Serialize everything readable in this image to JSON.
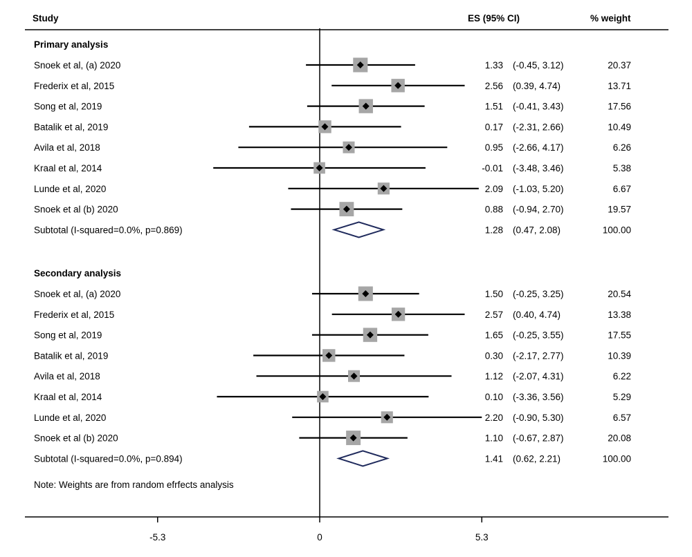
{
  "headers": {
    "study": "Study",
    "es": "ES (95% CI)",
    "weight": "% weight"
  },
  "note": "Note: Weights are from random efrfects analysis",
  "chart_data": {
    "type": "forest",
    "x_axis": {
      "ticks": [
        -5.3,
        0,
        5.3
      ],
      "tick_labels": [
        "-5.3",
        "0",
        "5.3"
      ],
      "null_line": 0
    },
    "sections": [
      {
        "title": "Primary analysis",
        "studies": [
          {
            "label": "Snoek et al, (a) 2020",
            "es": 1.33,
            "lo": -0.45,
            "hi": 3.12,
            "es_text": "1.33",
            "ci_text": "(-0.45, 3.12)",
            "weight": "20.37"
          },
          {
            "label": "Frederix et al, 2015",
            "es": 2.56,
            "lo": 0.39,
            "hi": 4.74,
            "es_text": "2.56",
            "ci_text": "(0.39, 4.74)",
            "weight": "13.71"
          },
          {
            "label": "Song et al, 2019",
            "es": 1.51,
            "lo": -0.41,
            "hi": 3.43,
            "es_text": "1.51",
            "ci_text": "(-0.41, 3.43)",
            "weight": "17.56"
          },
          {
            "label": "Batalik et al, 2019",
            "es": 0.17,
            "lo": -2.31,
            "hi": 2.66,
            "es_text": "0.17",
            "ci_text": "(-2.31, 2.66)",
            "weight": "10.49"
          },
          {
            "label": "Avila et al, 2018",
            "es": 0.95,
            "lo": -2.66,
            "hi": 4.17,
            "es_text": "0.95",
            "ci_text": "(-2.66, 4.17)",
            "weight": "6.26"
          },
          {
            "label": "Kraal et al, 2014",
            "es": -0.01,
            "lo": -3.48,
            "hi": 3.46,
            "es_text": "-0.01",
            "ci_text": "(-3.48, 3.46)",
            "weight": "5.38"
          },
          {
            "label": "Lunde et al, 2020",
            "es": 2.09,
            "lo": -1.03,
            "hi": 5.2,
            "es_text": "2.09",
            "ci_text": "(-1.03, 5.20)",
            "weight": "6.67"
          },
          {
            "label": "Snoek et al (b) 2020",
            "es": 0.88,
            "lo": -0.94,
            "hi": 2.7,
            "es_text": "0.88",
            "ci_text": "(-0.94, 2.70)",
            "weight": "19.57"
          }
        ],
        "subtotal": {
          "label": "Subtotal (I-squared=0.0%, p=0.869)",
          "es": 1.28,
          "lo": 0.47,
          "hi": 2.08,
          "es_text": "1.28",
          "ci_text": "(0.47, 2.08)",
          "weight": "100.00"
        }
      },
      {
        "title": "Secondary analysis",
        "studies": [
          {
            "label": "Snoek et al, (a) 2020",
            "es": 1.5,
            "lo": -0.25,
            "hi": 3.25,
            "es_text": "1.50",
            "ci_text": "(-0.25, 3.25)",
            "weight": "20.54"
          },
          {
            "label": "Frederix et al, 2015",
            "es": 2.57,
            "lo": 0.4,
            "hi": 4.74,
            "es_text": "2.57",
            "ci_text": "(0.40, 4.74)",
            "weight": "13.38"
          },
          {
            "label": "Song et al, 2019",
            "es": 1.65,
            "lo": -0.25,
            "hi": 3.55,
            "es_text": "1.65",
            "ci_text": "(-0.25, 3.55)",
            "weight": "17.55"
          },
          {
            "label": "Batalik et al, 2019",
            "es": 0.3,
            "lo": -2.17,
            "hi": 2.77,
            "es_text": "0.30",
            "ci_text": "(-2.17, 2.77)",
            "weight": "10.39"
          },
          {
            "label": "Avila et al, 2018",
            "es": 1.12,
            "lo": -2.07,
            "hi": 4.31,
            "es_text": "1.12",
            "ci_text": "(-2.07, 4.31)",
            "weight": "6.22"
          },
          {
            "label": "Kraal et al, 2014",
            "es": 0.1,
            "lo": -3.36,
            "hi": 3.56,
            "es_text": "0.10",
            "ci_text": "(-3.36, 3.56)",
            "weight": "5.29"
          },
          {
            "label": "Lunde et al, 2020",
            "es": 2.2,
            "lo": -0.9,
            "hi": 5.3,
            "es_text": "2.20",
            "ci_text": "(-0.90, 5.30)",
            "weight": "6.57"
          },
          {
            "label": "Snoek et al (b) 2020",
            "es": 1.1,
            "lo": -0.67,
            "hi": 2.87,
            "es_text": "1.10",
            "ci_text": "(-0.67, 2.87)",
            "weight": "20.08"
          }
        ],
        "subtotal": {
          "label": "Subtotal (I-squared=0.0%, p=0.894)",
          "es": 1.41,
          "lo": 0.62,
          "hi": 2.21,
          "es_text": "1.41",
          "ci_text": "(0.62, 2.21)",
          "weight": "100.00"
        }
      }
    ],
    "colors": {
      "box": "#a6a6a6",
      "point": "#000000",
      "diamond": "#1f2a5c",
      "line": "#000000"
    }
  }
}
